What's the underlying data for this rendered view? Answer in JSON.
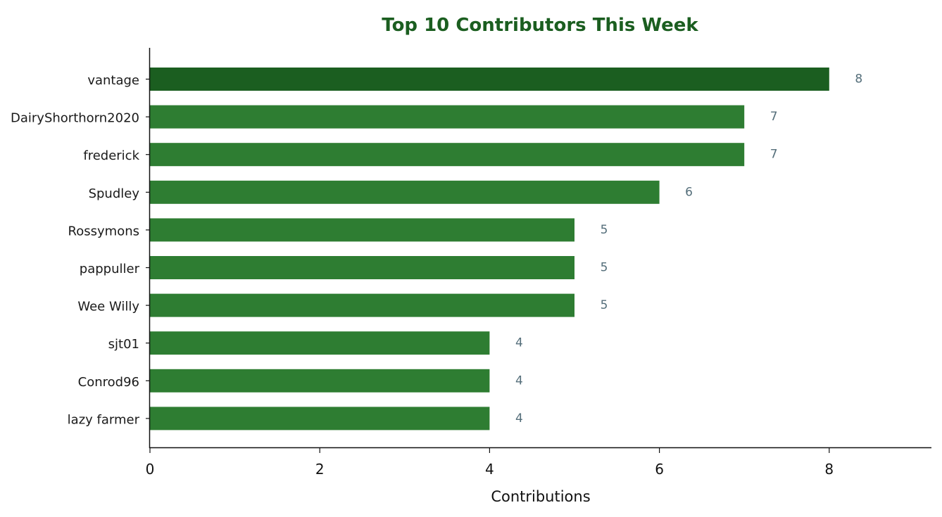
{
  "chart_data": {
    "type": "bar",
    "orientation": "horizontal",
    "title": "Top 10 Contributors This Week",
    "xlabel": "Contributions",
    "ylabel": "",
    "categories": [
      "vantage",
      "DairyShorthorn2020",
      "frederick",
      "Spudley",
      "Rossymons",
      "pappuller",
      "Wee Willy",
      "sjt01",
      "Conrod96",
      "lazy farmer"
    ],
    "values": [
      8,
      7,
      7,
      6,
      5,
      5,
      5,
      4,
      4,
      4
    ],
    "x_ticks": [
      "0",
      "2",
      "4",
      "6",
      "8"
    ],
    "xlim": [
      0,
      9.2
    ],
    "grid": false,
    "legend": "none",
    "colors": {
      "title": "#1b5e20",
      "top_bar": "#1b5e20",
      "bar": "#2e7d32",
      "value_label": "#546e7a",
      "axis": "#111111"
    }
  }
}
